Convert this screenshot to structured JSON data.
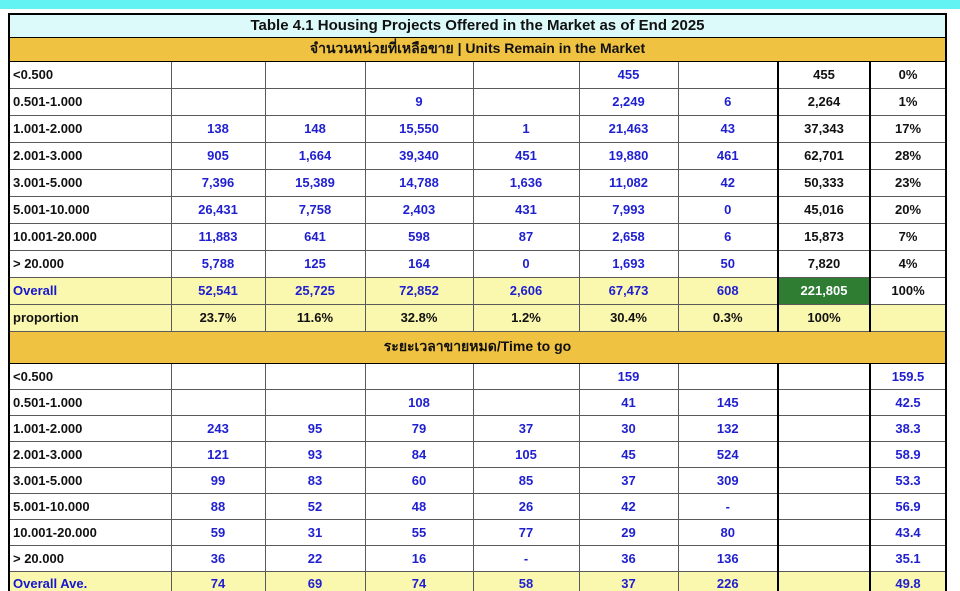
{
  "title": "Table 4.1 Housing Projects Offered in the Market as of End 2025",
  "colors": {
    "accent_bar": "#63F3F3",
    "title_bg": "#DCFAFA",
    "section_header_bg": "#F0C242",
    "summary_row_bg": "#FAF7AE",
    "grand_total_bg": "#2E7D33",
    "data_text": "#1F1FD0",
    "label_text": "#111111"
  },
  "sections": [
    {
      "header": "จำนวนหน่วยที่เหลือขาย | Units Remain  in the Market",
      "rows": [
        {
          "type": "data",
          "label": "<0.500",
          "cells": [
            "",
            "",
            "",
            "",
            "455",
            "",
            "455",
            "0%"
          ]
        },
        {
          "type": "data",
          "label": "0.501-1.000",
          "cells": [
            "",
            "",
            "9",
            "",
            "2,249",
            "6",
            "2,264",
            "1%"
          ]
        },
        {
          "type": "data",
          "label": "1.001-2.000",
          "cells": [
            "138",
            "148",
            "15,550",
            "1",
            "21,463",
            "43",
            "37,343",
            "17%"
          ]
        },
        {
          "type": "data",
          "label": "2.001-3.000",
          "cells": [
            "905",
            "1,664",
            "39,340",
            "451",
            "19,880",
            "461",
            "62,701",
            "28%"
          ]
        },
        {
          "type": "data",
          "label": "3.001-5.000",
          "cells": [
            "7,396",
            "15,389",
            "14,788",
            "1,636",
            "11,082",
            "42",
            "50,333",
            "23%"
          ]
        },
        {
          "type": "data",
          "label": "5.001-10.000",
          "cells": [
            "26,431",
            "7,758",
            "2,403",
            "431",
            "7,993",
            "0",
            "45,016",
            "20%"
          ]
        },
        {
          "type": "data",
          "label": "10.001-20.000",
          "cells": [
            "11,883",
            "641",
            "598",
            "87",
            "2,658",
            "6",
            "15,873",
            "7%"
          ]
        },
        {
          "type": "data",
          "label": "> 20.000",
          "cells": [
            "5,788",
            "125",
            "164",
            "0",
            "1,693",
            "50",
            "7,820",
            "4%"
          ]
        },
        {
          "type": "overall",
          "label": "Overall",
          "cells": [
            "52,541",
            "25,725",
            "72,852",
            "2,606",
            "67,473",
            "608",
            "221,805",
            "100%"
          ]
        },
        {
          "type": "proportion",
          "label": "proportion",
          "cells": [
            "23.7%",
            "11.6%",
            "32.8%",
            "1.2%",
            "30.4%",
            "0.3%",
            "100%",
            ""
          ]
        }
      ]
    },
    {
      "header": "ระยะเวลาขายหมด/Time to go",
      "rows": [
        {
          "type": "data",
          "label": "<0.500",
          "cells": [
            "",
            "",
            "",
            "",
            "159",
            "",
            "",
            "159.5"
          ]
        },
        {
          "type": "data",
          "label": "0.501-1.000",
          "cells": [
            "",
            "",
            "108",
            "",
            "41",
            "145",
            "",
            "42.5"
          ]
        },
        {
          "type": "data",
          "label": "1.001-2.000",
          "cells": [
            "243",
            "95",
            "79",
            "37",
            "30",
            "132",
            "",
            "38.3"
          ]
        },
        {
          "type": "data",
          "label": "2.001-3.000",
          "cells": [
            "121",
            "93",
            "84",
            "105",
            "45",
            "524",
            "",
            "58.9"
          ]
        },
        {
          "type": "data",
          "label": "3.001-5.000",
          "cells": [
            "99",
            "83",
            "60",
            "85",
            "37",
            "309",
            "",
            "53.3"
          ]
        },
        {
          "type": "data",
          "label": "5.001-10.000",
          "cells": [
            "88",
            "52",
            "48",
            "26",
            "42",
            "-",
            "",
            "56.9"
          ]
        },
        {
          "type": "data",
          "label": "10.001-20.000",
          "cells": [
            "59",
            "31",
            "55",
            "77",
            "29",
            "80",
            "",
            "43.4"
          ]
        },
        {
          "type": "data",
          "label": "> 20.000",
          "cells": [
            "36",
            "22",
            "16",
            "-",
            "36",
            "136",
            "",
            "35.1"
          ]
        },
        {
          "type": "overall",
          "label": "Overall Ave.",
          "cells": [
            "74",
            "69",
            "74",
            "58",
            "37",
            "226",
            "",
            "49.8"
          ]
        }
      ]
    }
  ]
}
